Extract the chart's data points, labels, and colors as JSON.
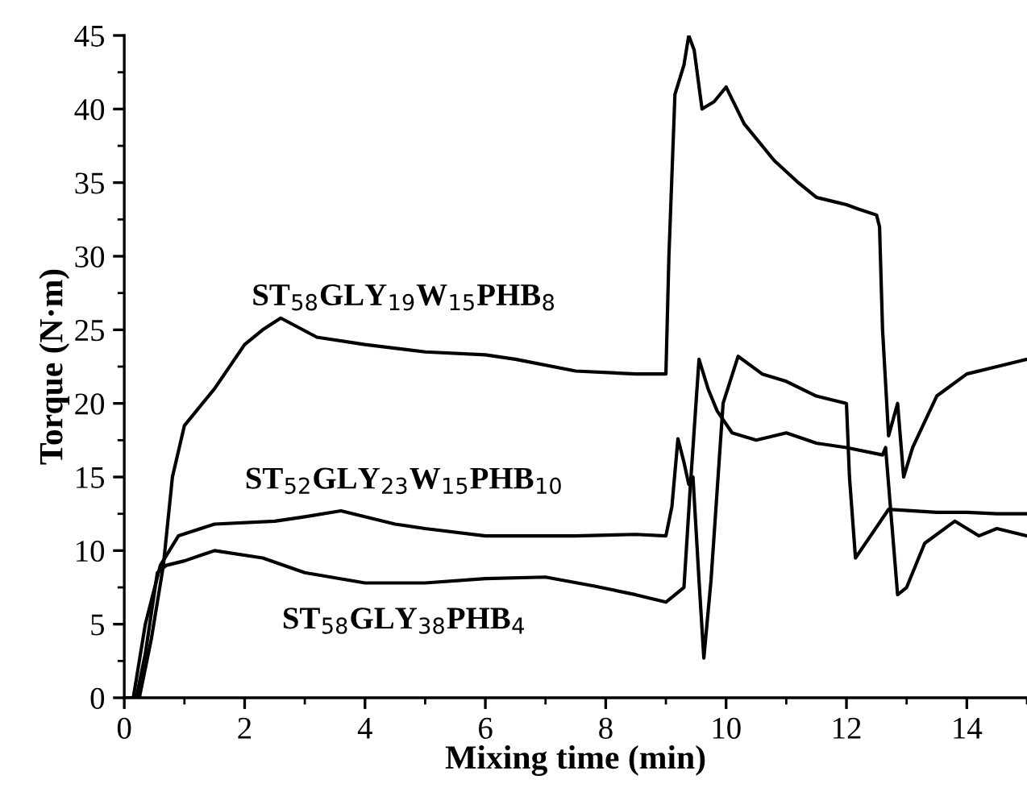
{
  "chart_data": {
    "type": "line",
    "xlabel": "Mixing time (min)",
    "ylabel": "Torque (N·m)",
    "xlim": [
      0,
      15
    ],
    "ylim": [
      0,
      45
    ],
    "xticks": [
      0,
      2,
      4,
      6,
      8,
      10,
      12,
      14
    ],
    "yticks": [
      0,
      5,
      10,
      15,
      20,
      25,
      30,
      35,
      40,
      45
    ],
    "grid": false,
    "legend": false,
    "marker": "none",
    "line_style": "solid",
    "series": [
      {
        "name": "ST$_{58}$GLY$_{19}$W$_{15}$PHB$_{8}$",
        "color": "#000000",
        "x": [
          0,
          0.25,
          0.45,
          0.65,
          0.8,
          1.0,
          1.2,
          1.5,
          2.0,
          2.3,
          2.6,
          3.2,
          4.0,
          5.0,
          6.0,
          6.5,
          7.5,
          8.5,
          9.0,
          9.05,
          9.15,
          9.3,
          9.38,
          9.47,
          9.6,
          9.8,
          10.0,
          10.3,
          10.8,
          11.2,
          11.5,
          12.0,
          12.2,
          12.5,
          12.55,
          12.6,
          12.7,
          12.85,
          12.95,
          13.1,
          13.5,
          14.0,
          14.5,
          15.0
        ],
        "values": [
          0,
          0,
          4,
          9,
          15,
          18.5,
          19.5,
          21,
          24,
          25,
          25.8,
          24.5,
          24,
          23.5,
          23.3,
          23,
          22.2,
          22,
          22,
          30,
          41,
          43,
          45,
          44,
          40,
          40.5,
          41.5,
          39,
          36.5,
          35,
          34,
          33.5,
          33.2,
          32.8,
          32,
          25,
          17.8,
          20,
          15,
          17,
          20.5,
          22,
          22.5,
          23
        ]
      },
      {
        "name": "ST$_{52}$GLY$_{23}$W$_{15}$PHB$_{10}$",
        "color": "#000000",
        "x": [
          0,
          0.15,
          0.35,
          0.6,
          0.9,
          1.5,
          2.5,
          3.0,
          3.6,
          4.5,
          5.0,
          6.0,
          7.5,
          8.5,
          9.0,
          9.1,
          9.2,
          9.3,
          9.38,
          9.45,
          9.55,
          9.63,
          9.75,
          9.95,
          10.2,
          10.6,
          11.0,
          11.5,
          12.0,
          12.05,
          12.15,
          12.4,
          12.7,
          13.5,
          14.0,
          14.5,
          15.0
        ],
        "values": [
          0,
          0,
          5,
          9,
          11,
          11.8,
          12,
          12.3,
          12.7,
          11.8,
          11.5,
          11,
          11,
          11.1,
          11,
          13,
          17.6,
          16,
          14.5,
          15,
          8,
          2.7,
          8,
          20,
          23.2,
          22,
          21.5,
          20.5,
          20,
          15,
          9.5,
          11,
          12.8,
          12.6,
          12.6,
          12.5,
          12.5
        ]
      },
      {
        "name": "ST$_{58}$GLY$_{38}$PHB$_{4}$",
        "color": "#000000",
        "x": [
          0,
          0.2,
          0.35,
          0.55,
          0.7,
          1.0,
          1.5,
          2.3,
          3.0,
          4.0,
          5.0,
          6.0,
          7.0,
          7.8,
          8.5,
          9.0,
          9.3,
          9.4,
          9.55,
          9.7,
          9.85,
          10.1,
          10.5,
          11.0,
          11.5,
          12.0,
          12.6,
          12.65,
          12.75,
          12.85,
          13.0,
          13.3,
          13.8,
          14.2,
          14.5,
          15.0
        ],
        "values": [
          0,
          0,
          3,
          8.5,
          9,
          9.3,
          10,
          9.5,
          8.5,
          7.8,
          7.8,
          8.1,
          8.2,
          7.6,
          7,
          6.5,
          7.5,
          14,
          23,
          21,
          19.5,
          18,
          17.5,
          18,
          17.3,
          17,
          16.5,
          17,
          12,
          7,
          7.5,
          10.5,
          12,
          11,
          11.5,
          11
        ]
      }
    ]
  }
}
